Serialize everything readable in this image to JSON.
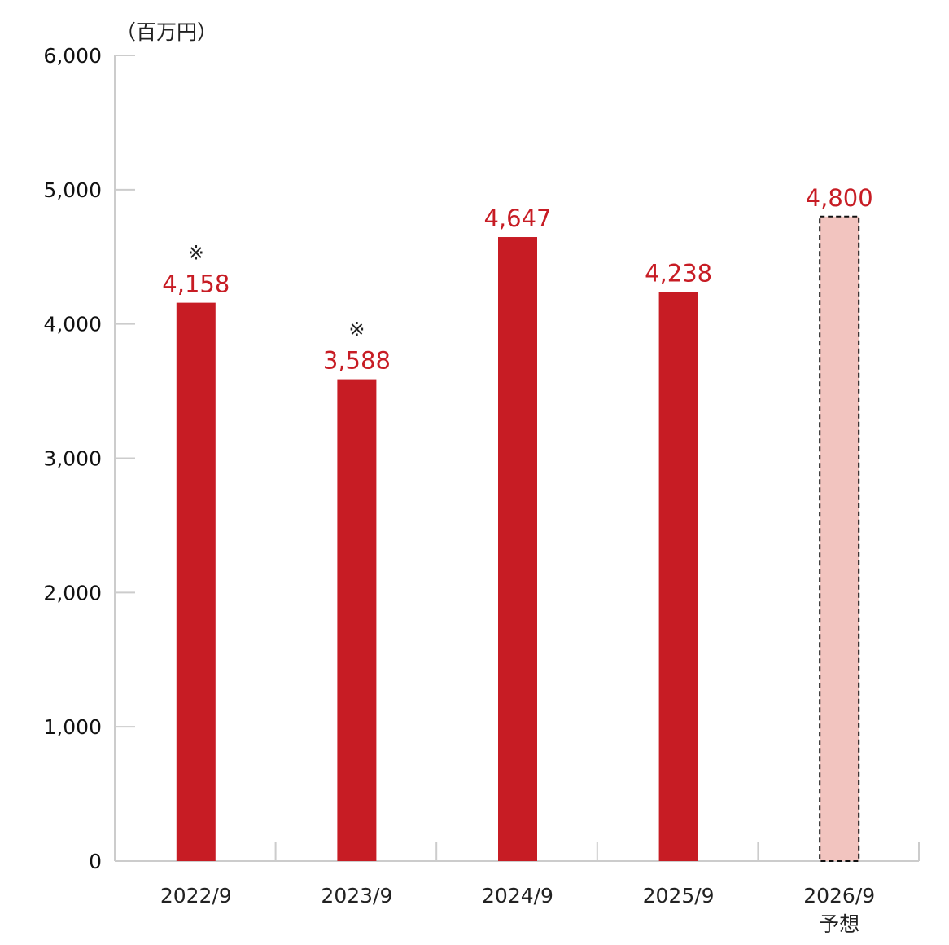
{
  "chart_data": {
    "type": "bar",
    "title": "",
    "unit_label": "（百万円）",
    "xlabel": "",
    "ylabel": "（百万円）",
    "ylim": [
      0,
      6000
    ],
    "yticks": [
      0,
      1000,
      2000,
      3000,
      4000,
      5000,
      6000
    ],
    "ytick_labels": [
      "0",
      "1,000",
      "2,000",
      "3,000",
      "4,000",
      "5,000",
      "6,000"
    ],
    "categories": [
      "2022/9",
      "2023/9",
      "2024/9",
      "2025/9",
      "2026/9"
    ],
    "category_sublabels": [
      "",
      "",
      "",
      "",
      "予想"
    ],
    "values": [
      4158,
      3588,
      4647,
      4238,
      4800
    ],
    "value_labels": [
      "4,158",
      "3,588",
      "4,647",
      "4,238",
      "4,800"
    ],
    "annotations": [
      "※",
      "※",
      "",
      "",
      ""
    ],
    "forecast": [
      false,
      false,
      false,
      false,
      true
    ],
    "grid": false,
    "colors": {
      "actual": "#c71c24",
      "forecast": "#f2c4bf",
      "axis": "#cccccc",
      "label": "#c71c24"
    }
  }
}
